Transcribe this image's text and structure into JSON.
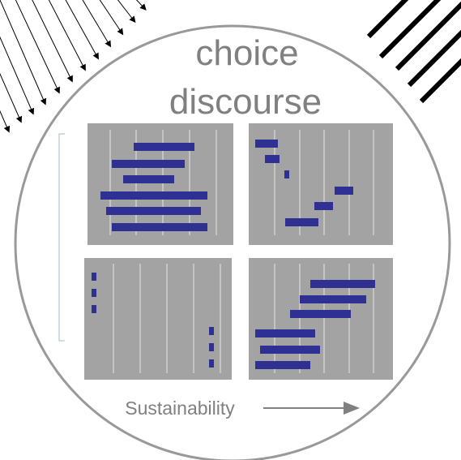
{
  "title": {
    "line1": "choice",
    "line2": "discourse"
  },
  "axis_label": "Sustainability"
}
